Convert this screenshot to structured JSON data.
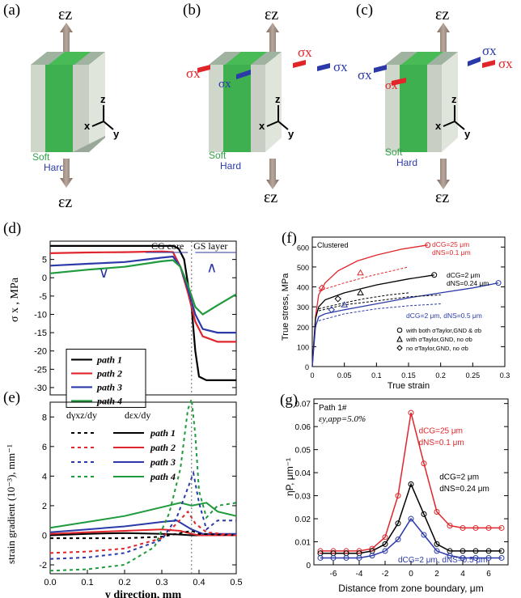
{
  "panels": {
    "a": "(a)",
    "b": "(b)",
    "c": "(c)",
    "d": "(d)",
    "e": "(e)",
    "f": "(f)",
    "g": "(g)"
  },
  "cube": {
    "eps_top": "εz",
    "eps_bottom": "εz",
    "axis_z": "z",
    "axis_x": "x",
    "axis_y": "y",
    "soft": "Soft",
    "hard": "Hard",
    "sigma": "σx"
  },
  "colors": {
    "black": "#000000",
    "red": "#e0262b",
    "blue": "#2b3aa8",
    "green": "#1f9a3c",
    "red_mark": "#e8433f",
    "blue_mark": "#3c4fd6",
    "cube_green": "#33b04a",
    "cube_grey": "#d5ddd0"
  },
  "chart_data": [
    {
      "id": "d",
      "type": "line",
      "ylabel": "σ x , MPa",
      "xlim": [
        0,
        0.5
      ],
      "ylim": [
        -32,
        10
      ],
      "yticks": [
        5,
        0,
        -5,
        -10,
        -15,
        -20,
        -25,
        -30
      ],
      "annotations": [
        "CG core",
        "GS layer"
      ],
      "series": [
        {
          "name": "path 1",
          "color": "#000000",
          "x": [
            0,
            0.1,
            0.2,
            0.3,
            0.33,
            0.345,
            0.36,
            0.38,
            0.39,
            0.4,
            0.42,
            0.45,
            0.5
          ],
          "y": [
            8.7,
            8.7,
            8.7,
            8.7,
            8.7,
            8,
            5,
            -8,
            -20,
            -27,
            -28,
            -28,
            -28
          ]
        },
        {
          "name": "path 2",
          "color": "#e0262b",
          "x": [
            0,
            0.1,
            0.2,
            0.3,
            0.33,
            0.35,
            0.37,
            0.39,
            0.41,
            0.45,
            0.5
          ],
          "y": [
            6.7,
            6.9,
            7,
            7.2,
            7,
            3,
            -4,
            -12,
            -16,
            -17.5,
            -17.5
          ]
        },
        {
          "name": "path 3",
          "color": "#2b3aa8",
          "x": [
            0,
            0.1,
            0.2,
            0.3,
            0.33,
            0.35,
            0.37,
            0.39,
            0.41,
            0.45,
            0.5
          ],
          "y": [
            3.3,
            3.8,
            4.3,
            5.5,
            5.8,
            3,
            -3,
            -10,
            -14,
            -15,
            -15
          ]
        },
        {
          "name": "path 4",
          "color": "#1f9a3c",
          "x": [
            0,
            0.1,
            0.2,
            0.3,
            0.33,
            0.35,
            0.37,
            0.39,
            0.41,
            0.45,
            0.5
          ],
          "y": [
            1.2,
            2.2,
            3,
            4.5,
            4.8,
            3,
            -2,
            -8,
            -10,
            -7.5,
            -4.5
          ]
        }
      ],
      "legend": [
        "path 1",
        "path 2",
        "path 3",
        "path 4"
      ]
    },
    {
      "id": "e",
      "type": "line",
      "xlabel": "y direction, mm",
      "ylabel": "strain gradient (10⁻³), mm⁻¹",
      "xlim": [
        0,
        0.5
      ],
      "ylim": [
        -2.6,
        9
      ],
      "xticks": [
        0.0,
        0.1,
        0.2,
        0.3,
        0.4,
        0.5
      ],
      "yticks": [
        8,
        6,
        4,
        2,
        0,
        -2
      ],
      "legend_header": [
        "dγxz/dy",
        "dεx/dy"
      ],
      "legend": [
        "path 1",
        "path 2",
        "path 3",
        "path 4"
      ],
      "series": [
        {
          "name": "path 1",
          "style": "solid",
          "color": "#000000",
          "x": [
            0,
            0.1,
            0.2,
            0.3,
            0.35,
            0.38,
            0.4,
            0.5
          ],
          "y": [
            0,
            0.1,
            0.15,
            0.1,
            0.05,
            0,
            0,
            0
          ]
        },
        {
          "name": "path 2",
          "style": "solid",
          "color": "#e0262b",
          "x": [
            0,
            0.1,
            0.2,
            0.3,
            0.35,
            0.38,
            0.4,
            0.5
          ],
          "y": [
            0.1,
            0.2,
            0.3,
            0.4,
            0.3,
            0.1,
            0,
            0
          ]
        },
        {
          "name": "path 3",
          "style": "solid",
          "color": "#2b3aa8",
          "x": [
            0,
            0.1,
            0.2,
            0.3,
            0.34,
            0.38,
            0.41,
            0.45,
            0.5
          ],
          "y": [
            0.2,
            0.4,
            0.6,
            0.9,
            1.0,
            0.4,
            0.1,
            0.1,
            0.1
          ]
        },
        {
          "name": "path 4",
          "style": "solid",
          "color": "#1f9a3c",
          "x": [
            0,
            0.1,
            0.2,
            0.3,
            0.35,
            0.38,
            0.42,
            0.45,
            0.5
          ],
          "y": [
            0.5,
            0.9,
            1.3,
            1.9,
            2.2,
            2.0,
            2.2,
            1.6,
            1.3
          ]
        },
        {
          "name": "path 1",
          "style": "dash",
          "color": "#000000",
          "x": [
            0,
            0.2,
            0.3,
            0.36,
            0.38,
            0.4,
            0.5
          ],
          "y": [
            -0.2,
            -0.2,
            -0.1,
            0.2,
            0.3,
            0.1,
            0
          ]
        },
        {
          "name": "path 2",
          "style": "dash",
          "color": "#e0262b",
          "x": [
            0,
            0.1,
            0.2,
            0.3,
            0.34,
            0.37,
            0.39,
            0.42,
            0.5
          ],
          "y": [
            -1.2,
            -1.1,
            -0.9,
            -0.2,
            0.8,
            1.6,
            0.8,
            0.2,
            0
          ]
        },
        {
          "name": "path 3",
          "style": "dash",
          "color": "#2b3aa8",
          "x": [
            0,
            0.1,
            0.2,
            0.3,
            0.34,
            0.37,
            0.385,
            0.4,
            0.42,
            0.45,
            0.5
          ],
          "y": [
            -1.6,
            -1.5,
            -1.2,
            -0.3,
            1.2,
            3.2,
            4.2,
            2.2,
            0.4,
            1.0,
            1.0
          ]
        },
        {
          "name": "path 4",
          "style": "dash",
          "color": "#1f9a3c",
          "x": [
            0,
            0.1,
            0.2,
            0.28,
            0.32,
            0.35,
            0.37,
            0.38,
            0.39,
            0.4,
            0.42,
            0.45,
            0.5
          ],
          "y": [
            -2.4,
            -2.3,
            -2.0,
            -0.8,
            1.5,
            4.5,
            8.5,
            9.2,
            6.8,
            3.0,
            1.2,
            2.0,
            2.2
          ]
        }
      ]
    },
    {
      "id": "f",
      "type": "line",
      "xlabel": "True strain",
      "ylabel": "True stress, MPa",
      "title": "Clustered",
      "xlim": [
        0,
        0.3
      ],
      "ylim": [
        0,
        650
      ],
      "xticks": [
        0,
        0.05,
        0.1,
        0.15,
        0.2,
        0.25,
        0.3
      ],
      "yticks": [
        0,
        100,
        200,
        300,
        400,
        500,
        600
      ],
      "annotations": [
        "dCG=25 μm",
        "dNS=0.1 μm",
        "dCG=2 μm",
        "dNS=0.24 μm",
        "dCG=2 μm, dNS=0.5 μm"
      ],
      "legend": [
        "with both σTaylor,GND & σb",
        "with σTaylor,GND, no σb",
        "no σTaylor,GND, no σb"
      ],
      "series": [
        {
          "name": "dCG=25 μm, dNS=0.1 μm",
          "color": "#e0262b",
          "x": [
            0,
            0.005,
            0.01,
            0.02,
            0.04,
            0.07,
            0.1,
            0.14,
            0.18
          ],
          "y": [
            0,
            250,
            360,
            420,
            480,
            530,
            560,
            590,
            610
          ]
        },
        {
          "name": "dCG=2 μm, dNS=0.24 μm",
          "color": "#000000",
          "x": [
            0,
            0.005,
            0.01,
            0.02,
            0.05,
            0.1,
            0.15,
            0.19
          ],
          "y": [
            0,
            240,
            300,
            335,
            370,
            410,
            440,
            460
          ]
        },
        {
          "name": "dCG=2 μm, dNS=0.5 μm",
          "color": "#2b3aa8",
          "x": [
            0,
            0.005,
            0.01,
            0.02,
            0.05,
            0.1,
            0.15,
            0.2,
            0.25,
            0.29
          ],
          "y": [
            0,
            200,
            250,
            265,
            285,
            315,
            345,
            370,
            395,
            420
          ]
        }
      ]
    },
    {
      "id": "g",
      "type": "line",
      "xlabel": "Distance from zone boundary, μm",
      "ylabel": "ηP, μm⁻¹",
      "title": "Path 1#",
      "subtitle": "εy,app=5.0%",
      "xlim": [
        -7.5,
        7.5
      ],
      "ylim": [
        0,
        0.072
      ],
      "xticks": [
        -6,
        -4,
        -2,
        0,
        2,
        4,
        6
      ],
      "yticks": [
        0,
        0.01,
        0.02,
        0.03,
        0.04,
        0.05,
        0.06,
        0.07
      ],
      "annotations": [
        "dCG=25 μm",
        "dNS=0.1 μm",
        "dCG=2 μm",
        "dNS=0.24 μm",
        "dCG=2 μm, dNS=0.5 μm"
      ],
      "series": [
        {
          "name": "dCG=25 μm, dNS=0.1 μm",
          "color": "#e0262b",
          "x": [
            -7,
            -6,
            -5,
            -4,
            -3,
            -2,
            -1,
            0,
            1,
            2,
            3,
            4,
            5,
            6,
            7
          ],
          "y": [
            0.006,
            0.006,
            0.006,
            0.006,
            0.007,
            0.012,
            0.03,
            0.066,
            0.044,
            0.023,
            0.017,
            0.016,
            0.016,
            0.016,
            0.016
          ]
        },
        {
          "name": "dCG=2 μm, dNS=0.24 μm",
          "color": "#000000",
          "x": [
            -7,
            -6,
            -5,
            -4,
            -3,
            -2,
            -1,
            0,
            1,
            2,
            3,
            4,
            5,
            6,
            7
          ],
          "y": [
            0.005,
            0.005,
            0.005,
            0.005,
            0.006,
            0.009,
            0.018,
            0.035,
            0.022,
            0.009,
            0.006,
            0.006,
            0.006,
            0.006,
            0.006
          ]
        },
        {
          "name": "dCG=2 μm, dNS=0.5 μm",
          "color": "#2b3aa8",
          "x": [
            -7,
            -6,
            -5,
            -4,
            -3,
            -2,
            -1,
            0,
            1,
            2,
            3,
            4,
            5,
            6,
            7
          ],
          "y": [
            0.003,
            0.003,
            0.003,
            0.003,
            0.004,
            0.006,
            0.011,
            0.02,
            0.013,
            0.006,
            0.004,
            0.003,
            0.003,
            0.003,
            0.003
          ]
        }
      ]
    }
  ]
}
